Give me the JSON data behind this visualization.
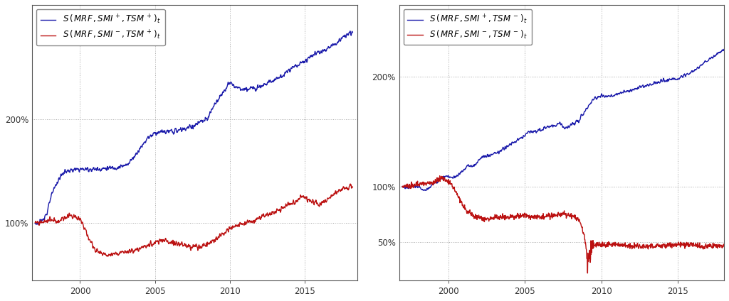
{
  "left_chart": {
    "yticks": [
      1.0,
      2.0
    ],
    "ytick_labels": [
      "100%",
      "200%"
    ],
    "xlim": [
      1996.8,
      2018.5
    ],
    "ylim": [
      0.45,
      3.1
    ],
    "xticks": [
      2000,
      2005,
      2010,
      2015
    ]
  },
  "right_chart": {
    "yticks": [
      0.5,
      1.0,
      2.0
    ],
    "ytick_labels": [
      "50%",
      "100%",
      "200%"
    ],
    "xlim": [
      1996.8,
      2018.0
    ],
    "ylim": [
      0.15,
      2.65
    ],
    "xticks": [
      2000,
      2005,
      2010,
      2015
    ]
  },
  "blue_color": "#1a1aaa",
  "red_color": "#bb1111",
  "line_width": 1.0,
  "grid_color": "#aaaaaa",
  "bg_color": "#FFFFFF",
  "legend_fontsize": 8.5,
  "tick_fontsize": 8.5
}
